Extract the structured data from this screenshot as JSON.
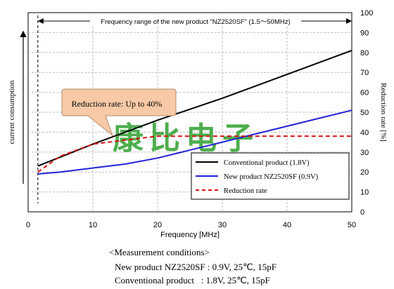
{
  "chart_data": {
    "type": "line",
    "title": "Frequency range of the new product “NZ2520SF” (1.5〜50MHz)",
    "xlabel": "Frequency [MHz]",
    "ylabel_left": "current consumption",
    "ylabel_right": "Reduction rate [%]",
    "xlim": [
      0,
      50
    ],
    "ylim_right": [
      0,
      100
    ],
    "x_ticks": [
      "0",
      "10",
      "20",
      "30",
      "40",
      "50"
    ],
    "y_ticks_right": [
      "0",
      "10",
      "20",
      "30",
      "40",
      "50",
      "60",
      "70",
      "80",
      "90",
      "100"
    ],
    "grid": true,
    "legend_position": "bottom-right",
    "frequency_range_marker": [
      1.5,
      50
    ],
    "callout": "Reduction rate: Up to 40%",
    "watermark": "康比电子",
    "series": [
      {
        "name": "Conventional product (1.8V)",
        "color": "#000000",
        "style": "solid",
        "x": [
          1.5,
          10,
          20,
          30,
          40,
          50
        ],
        "y": [
          23,
          34,
          46,
          57,
          69,
          81
        ]
      },
      {
        "name": "New product NZ2520SF (0.9V)",
        "color": "#2222dd",
        "style": "solid",
        "x": [
          1.5,
          5,
          10,
          15,
          20,
          25,
          30,
          35,
          40,
          45,
          50
        ],
        "y": [
          19,
          20,
          22,
          24,
          27,
          31,
          35,
          39,
          43,
          47,
          51
        ]
      },
      {
        "name": "Reduction rate",
        "color": "#dd1111",
        "style": "dashed",
        "x": [
          1.5,
          5,
          10,
          15,
          20,
          25,
          30,
          35,
          40,
          45,
          50
        ],
        "y": [
          20,
          28,
          34,
          36,
          38,
          38,
          38,
          38,
          38,
          38,
          38
        ]
      }
    ]
  },
  "conditions": {
    "heading": "<Measurement conditions>",
    "lines": [
      "New product NZ2520SF : 0.9V, 25℃, 15pF",
      "Conventional product   : 1.8V, 25℃, 15pF"
    ]
  }
}
